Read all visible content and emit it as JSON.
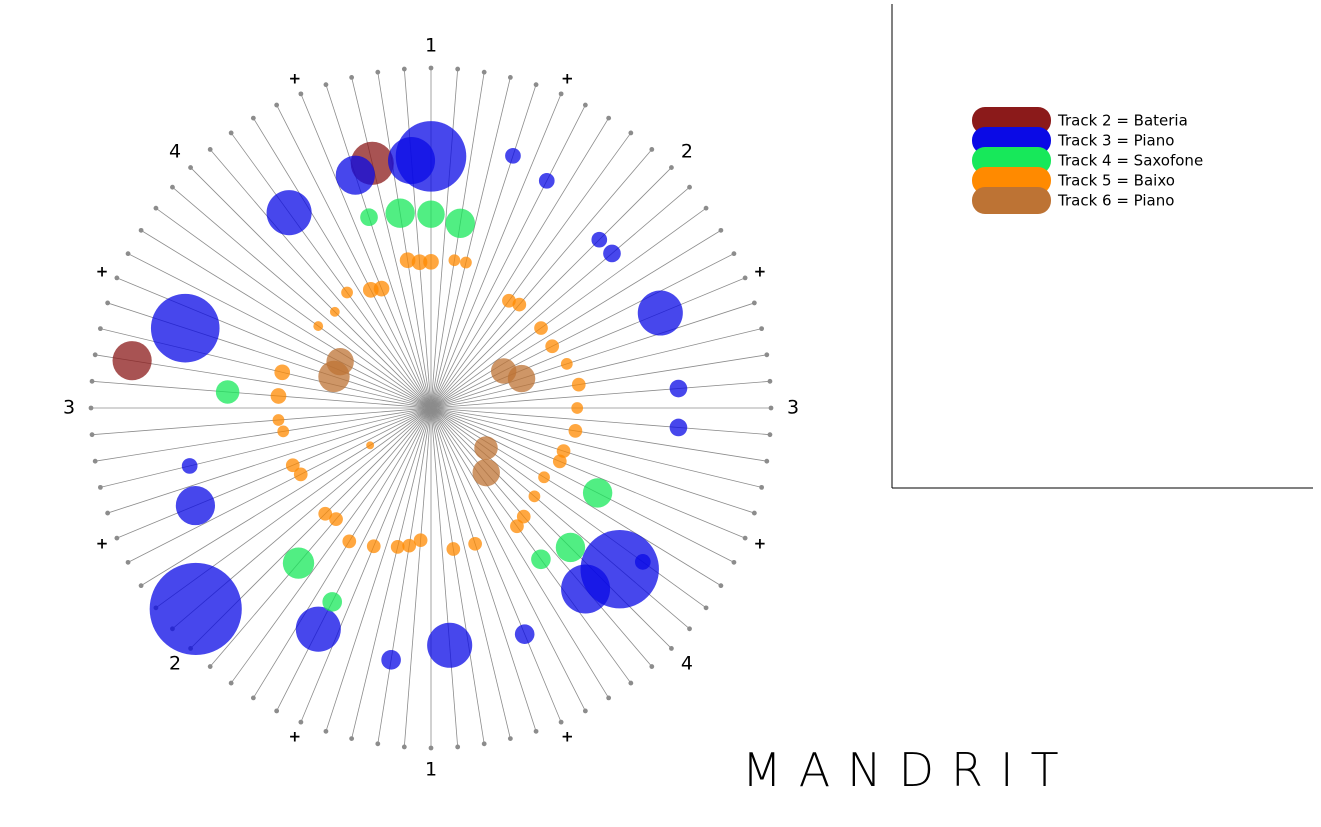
{
  "title": "MANDRIT",
  "legend": [
    {
      "label": "Track 2 = Bateria",
      "color": "#8b1a1a"
    },
    {
      "label": "Track 3 = Piano",
      "color": "#0a0ae6"
    },
    {
      "label": "Track 4 = Saxofone",
      "color": "#17e85a"
    },
    {
      "label": "Track 5 = Baixo",
      "color": "#ff8a00"
    },
    {
      "label": "Track 6 = Piano",
      "color": "#bd7334"
    }
  ],
  "beat_labels": [
    "1",
    "2",
    "3",
    "4",
    "1",
    "2",
    "3",
    "4"
  ],
  "plus_label": "+",
  "chart_data": {
    "type": "scatter",
    "coordinate_system": "polar",
    "angle_slots": 80,
    "angle_unit": "slot index (0 = top, clockwise; 80 slots = one revolution, each labelled beat = 10 slots)",
    "radius_unit": "fraction of outer rim",
    "size_unit": "relative bubble radius",
    "series": [
      {
        "name": "Track 2 = Bateria",
        "color": "#8b1a1a",
        "points": [
          [
            77,
            0.74,
            2.2
          ],
          [
            62,
            0.89,
            2.0
          ]
        ]
      },
      {
        "name": "Track 3 = Piano",
        "color": "#0a0ae6",
        "points": [
          [
            0,
            0.74,
            3.6
          ],
          [
            79,
            0.73,
            2.4
          ],
          [
            76,
            0.72,
            2.0
          ],
          [
            72,
            0.71,
            2.3
          ],
          [
            64,
            0.76,
            3.5
          ],
          [
            55,
            0.75,
            2.0
          ],
          [
            51,
            0.91,
            4.7
          ],
          [
            46,
            0.73,
            2.3
          ],
          [
            42,
            0.75,
            1.0
          ],
          [
            39,
            0.7,
            2.3
          ],
          [
            35,
            0.72,
            1.0
          ],
          [
            31,
            0.7,
            2.5
          ],
          [
            29,
            0.73,
            4.0
          ],
          [
            28,
            0.77,
            0.8
          ],
          [
            21,
            0.73,
            0.9
          ],
          [
            19,
            0.73,
            0.9
          ],
          [
            15,
            0.73,
            2.3
          ],
          [
            11,
            0.7,
            0.9
          ],
          [
            10,
            0.7,
            0.8
          ],
          [
            6,
            0.75,
            0.8
          ],
          [
            4,
            0.78,
            0.8
          ],
          [
            57,
            0.73,
            0.8
          ]
        ]
      },
      {
        "name": "Track 4 = Saxofone",
        "color": "#17e85a",
        "points": [
          [
            76,
            0.59,
            0.9
          ],
          [
            78,
            0.58,
            1.5
          ],
          [
            0,
            0.57,
            1.4
          ],
          [
            2,
            0.55,
            1.5
          ],
          [
            61,
            0.6,
            1.2
          ],
          [
            49,
            0.6,
            1.6
          ],
          [
            46,
            0.64,
            1.0
          ],
          [
            32,
            0.55,
            1.0
          ],
          [
            30,
            0.58,
            1.5
          ],
          [
            26,
            0.55,
            1.5
          ]
        ]
      },
      {
        "name": "Track 5 = Baixo",
        "color": "#ff8a00",
        "points": [
          [
            78,
            0.44,
            0.8
          ],
          [
            79,
            0.43,
            0.8
          ],
          [
            0,
            0.43,
            0.8
          ],
          [
            2,
            0.44,
            0.6
          ],
          [
            3,
            0.44,
            0.6
          ],
          [
            74,
            0.39,
            0.8
          ],
          [
            75,
            0.38,
            0.8
          ],
          [
            70,
            0.4,
            0.5
          ],
          [
            68,
            0.41,
            0.5
          ],
          [
            63,
            0.45,
            0.8
          ],
          [
            61,
            0.45,
            0.8
          ],
          [
            59,
            0.45,
            0.6
          ],
          [
            58,
            0.44,
            0.6
          ],
          [
            55,
            0.44,
            0.7
          ],
          [
            54,
            0.43,
            0.7
          ],
          [
            50,
            0.44,
            0.7
          ],
          [
            49,
            0.43,
            0.7
          ],
          [
            45,
            0.44,
            0.7
          ],
          [
            43,
            0.42,
            0.7
          ],
          [
            42,
            0.41,
            0.7
          ],
          [
            41,
            0.39,
            0.7
          ],
          [
            38,
            0.42,
            0.7
          ],
          [
            36,
            0.42,
            0.7
          ],
          [
            32,
            0.43,
            0.7
          ],
          [
            31,
            0.42,
            0.7
          ],
          [
            29,
            0.4,
            0.6
          ],
          [
            27,
            0.39,
            0.6
          ],
          [
            25,
            0.41,
            0.7
          ],
          [
            24,
            0.41,
            0.7
          ],
          [
            22,
            0.43,
            0.7
          ],
          [
            20,
            0.43,
            0.6
          ],
          [
            18,
            0.44,
            0.7
          ],
          [
            16,
            0.42,
            0.6
          ],
          [
            14,
            0.4,
            0.7
          ],
          [
            12,
            0.4,
            0.7
          ],
          [
            9,
            0.4,
            0.7
          ],
          [
            8,
            0.39,
            0.7
          ],
          [
            53,
            0.21,
            0.4
          ],
          [
            72,
            0.42,
            0.6
          ],
          [
            47,
            0.46,
            0.7
          ]
        ]
      },
      {
        "name": "Track 6 = Piano",
        "color": "#bd7334",
        "points": [
          [
            66,
            0.3,
            1.4
          ],
          [
            64,
            0.3,
            1.6
          ],
          [
            14,
            0.24,
            1.3
          ],
          [
            16,
            0.28,
            1.4
          ],
          [
            28,
            0.2,
            1.2
          ],
          [
            31,
            0.25,
            1.4
          ]
        ]
      }
    ]
  }
}
